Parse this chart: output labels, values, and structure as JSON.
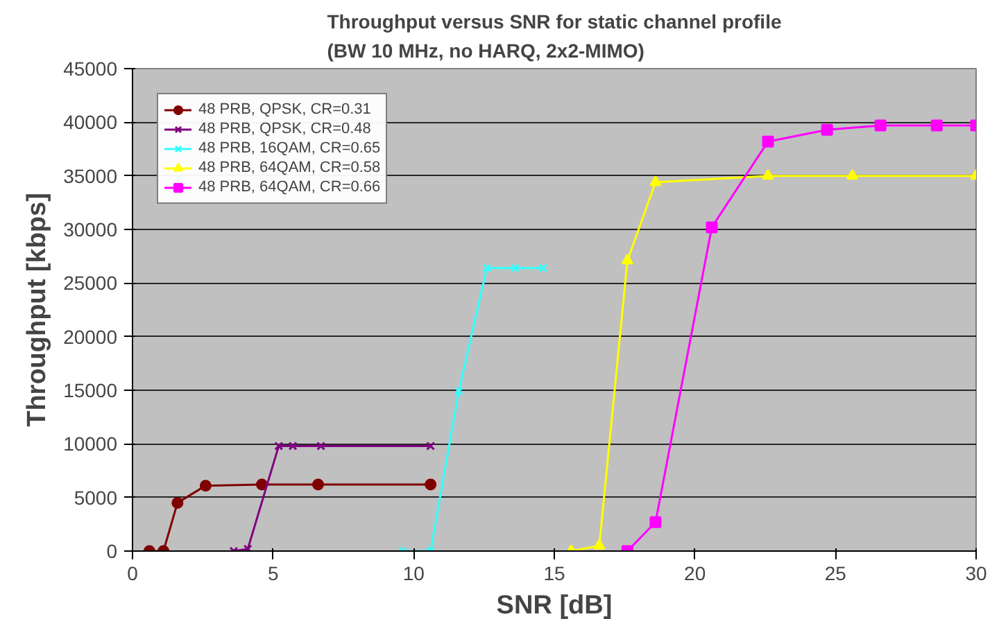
{
  "chart_data": {
    "type": "line",
    "title": "Throughput versus SNR for static channel profile\n(BW 10 MHz, no HARQ, 2x2-MIMO)",
    "xlabel": "SNR [dB]",
    "ylabel": "Throughput [kbps]",
    "xlim": [
      0,
      30
    ],
    "xticks": [
      0,
      5,
      10,
      15,
      20,
      25,
      30
    ],
    "ylim": [
      0,
      45000
    ],
    "yticks": [
      0,
      5000,
      10000,
      15000,
      20000,
      25000,
      30000,
      35000,
      40000,
      45000
    ],
    "grid": "y",
    "legend": "top left",
    "series": [
      {
        "name": "48 PRB, QPSK, CR=0.31",
        "color": "#800000",
        "marker": "circle",
        "x": [
          0.6,
          1.1,
          1.6,
          2.6,
          4.6,
          6.6,
          10.6
        ],
        "values": [
          0,
          0,
          4500,
          6100,
          6200,
          6200,
          6200
        ]
      },
      {
        "name": "48 PRB, QPSK, CR=0.48",
        "color": "#800080",
        "marker": "cross",
        "x": [
          3.6,
          4.1,
          5.2,
          5.7,
          6.7,
          10.6
        ],
        "values": [
          0,
          200,
          9800,
          9800,
          9800,
          9800
        ]
      },
      {
        "name": "48 PRB, 16QAM, CR=0.65",
        "color": "#33ffff",
        "marker": "cross",
        "x": [
          9.6,
          10.6,
          11.6,
          12.6,
          13.6,
          14.6
        ],
        "values": [
          0,
          0,
          14900,
          26400,
          26400,
          26400
        ]
      },
      {
        "name": "48 PRB, 64QAM, CR=0.58",
        "color": "#ffff00",
        "marker": "triangle",
        "x": [
          15.6,
          16.6,
          17.6,
          18.6,
          22.6,
          25.6,
          30
        ],
        "values": [
          0,
          500,
          27100,
          34400,
          35000,
          35000,
          35000
        ]
      },
      {
        "name": "48 PRB, 64QAM, CR=0.66",
        "color": "#ff00ff",
        "marker": "square",
        "x": [
          17.6,
          18.6,
          20.6,
          22.6,
          24.7,
          26.6,
          28.6,
          30
        ],
        "values": [
          0,
          2700,
          30200,
          38200,
          39300,
          39700,
          39700,
          39700
        ]
      }
    ]
  }
}
